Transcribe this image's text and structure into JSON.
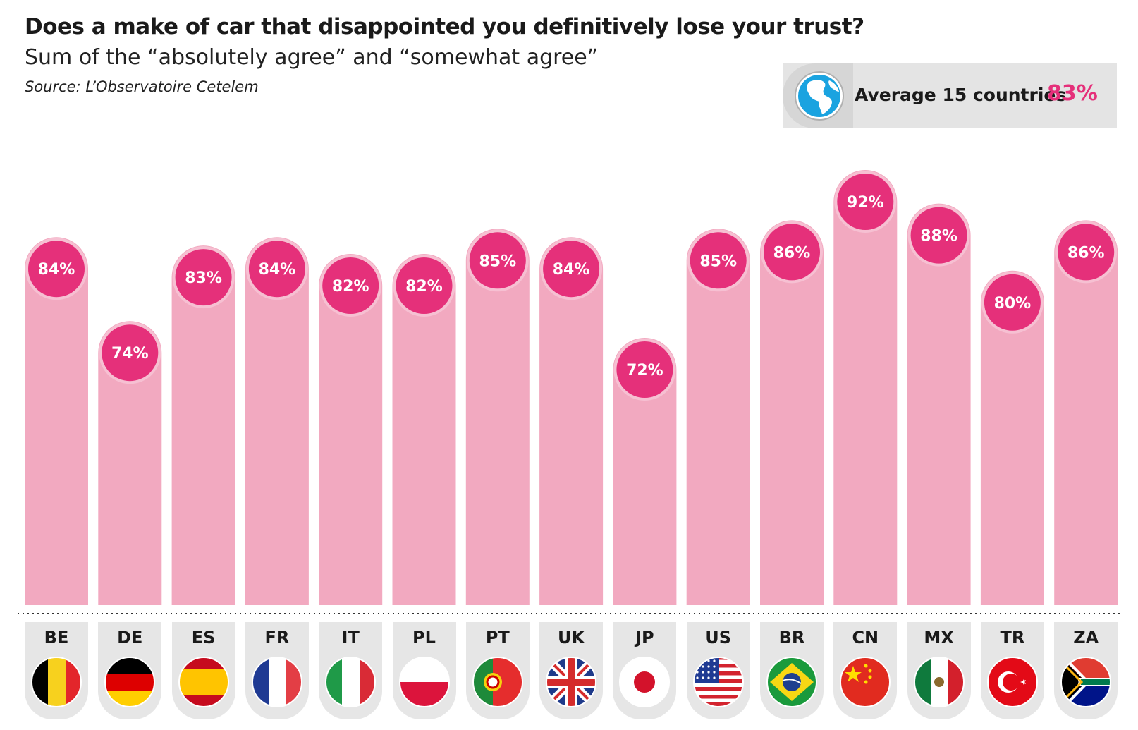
{
  "header": {
    "title": "Does a make of car that disappointed you definitively lose your trust?",
    "subtitle": "Sum of the “absolutely agree” and “somewhat agree”",
    "source": "Source: L’Observatoire Cetelem"
  },
  "average": {
    "label": "Average 15 countries",
    "value": "83%",
    "icon": "globe-icon"
  },
  "colors": {
    "bar": "#f2a9c0",
    "bar_cap": "#f6c0d2",
    "bubble": "#e5307a",
    "accent": "#e5307a",
    "cell_bg": "#e6e6e6"
  },
  "chart_data": {
    "type": "bar",
    "categories": [
      "BE",
      "DE",
      "ES",
      "FR",
      "IT",
      "PL",
      "PT",
      "UK",
      "JP",
      "US",
      "BR",
      "CN",
      "MX",
      "TR",
      "ZA"
    ],
    "values": [
      84,
      74,
      83,
      84,
      82,
      82,
      85,
      84,
      72,
      85,
      86,
      92,
      88,
      80,
      86
    ],
    "data_labels": [
      "84%",
      "74%",
      "83%",
      "84%",
      "82%",
      "82%",
      "85%",
      "84%",
      "72%",
      "85%",
      "86%",
      "92%",
      "88%",
      "80%",
      "86%"
    ],
    "unit": "%",
    "grid": false,
    "legend": "none"
  },
  "countries": [
    {
      "code": "BE",
      "flag": "belgium-flag-icon"
    },
    {
      "code": "DE",
      "flag": "germany-flag-icon"
    },
    {
      "code": "ES",
      "flag": "spain-flag-icon"
    },
    {
      "code": "FR",
      "flag": "france-flag-icon"
    },
    {
      "code": "IT",
      "flag": "italy-flag-icon"
    },
    {
      "code": "PL",
      "flag": "poland-flag-icon"
    },
    {
      "code": "PT",
      "flag": "portugal-flag-icon"
    },
    {
      "code": "UK",
      "flag": "uk-flag-icon"
    },
    {
      "code": "JP",
      "flag": "japan-flag-icon"
    },
    {
      "code": "US",
      "flag": "usa-flag-icon"
    },
    {
      "code": "BR",
      "flag": "brazil-flag-icon"
    },
    {
      "code": "CN",
      "flag": "china-flag-icon"
    },
    {
      "code": "MX",
      "flag": "mexico-flag-icon"
    },
    {
      "code": "TR",
      "flag": "turkey-flag-icon"
    },
    {
      "code": "ZA",
      "flag": "south-africa-flag-icon"
    }
  ]
}
